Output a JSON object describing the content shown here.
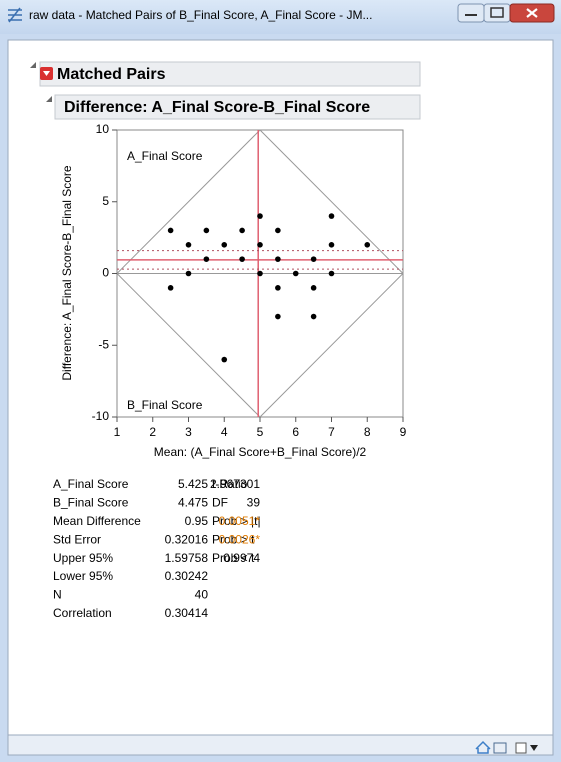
{
  "window": {
    "title": "raw data - Matched Pairs of B_Final Score, A_Final Score - JM..."
  },
  "outline": {
    "title": "Matched Pairs",
    "subtitle": "Difference: A_Final Score-B_Final Score"
  },
  "chart_data": {
    "type": "scatter",
    "x_label": "Mean: (A_Final Score+B_Final Score)/2",
    "y_label": "Difference: A_Final Score-B_Final Score",
    "top_label": "A_Final Score",
    "bottom_label": "B_Final Score",
    "xlim": [
      1,
      9
    ],
    "ylim": [
      -10,
      10
    ],
    "xticks": [
      1,
      2,
      3,
      4,
      5,
      6,
      7,
      8,
      9
    ],
    "yticks": [
      10,
      5,
      0,
      -5,
      -10
    ],
    "color": "#000000",
    "x": [
      2.5,
      2.5,
      3,
      3,
      3.5,
      3.5,
      4,
      4,
      4.5,
      4.5,
      5,
      5,
      5,
      5.5,
      5.5,
      5.5,
      5.5,
      6,
      6.5,
      6.5,
      6.5,
      7,
      7,
      7,
      8
    ],
    "values": [
      3,
      -1,
      2,
      0,
      3,
      1,
      2,
      -6,
      3,
      1,
      4,
      2,
      0,
      3,
      1,
      -1,
      -3,
      0,
      1,
      -1,
      -3,
      4,
      2,
      0,
      2
    ]
  },
  "stats": {
    "left": [
      {
        "label": "A_Final Score",
        "value": 5.425
      },
      {
        "label": "B_Final Score",
        "value": 4.475
      },
      {
        "label": "Mean Difference",
        "value": 0.95
      },
      {
        "label": "Std Error",
        "value": 0.32016
      },
      {
        "label": "Upper 95%",
        "value": 1.59758
      },
      {
        "label": "Lower 95%",
        "value": 0.30242
      },
      {
        "label": "N",
        "value": 40
      },
      {
        "label": "Correlation",
        "value": 0.30414
      }
    ],
    "right": [
      {
        "label": "t-Ratio",
        "value": 2.967301
      },
      {
        "label": "DF",
        "value": 39
      },
      {
        "label": "Prob > |t|",
        "value": "0.0051*",
        "color": "#e07b00"
      },
      {
        "label": "Prob > t",
        "value": "0.0026*",
        "color": "#e07b00"
      },
      {
        "label": "Prob < t",
        "value": 0.9974
      }
    ]
  }
}
